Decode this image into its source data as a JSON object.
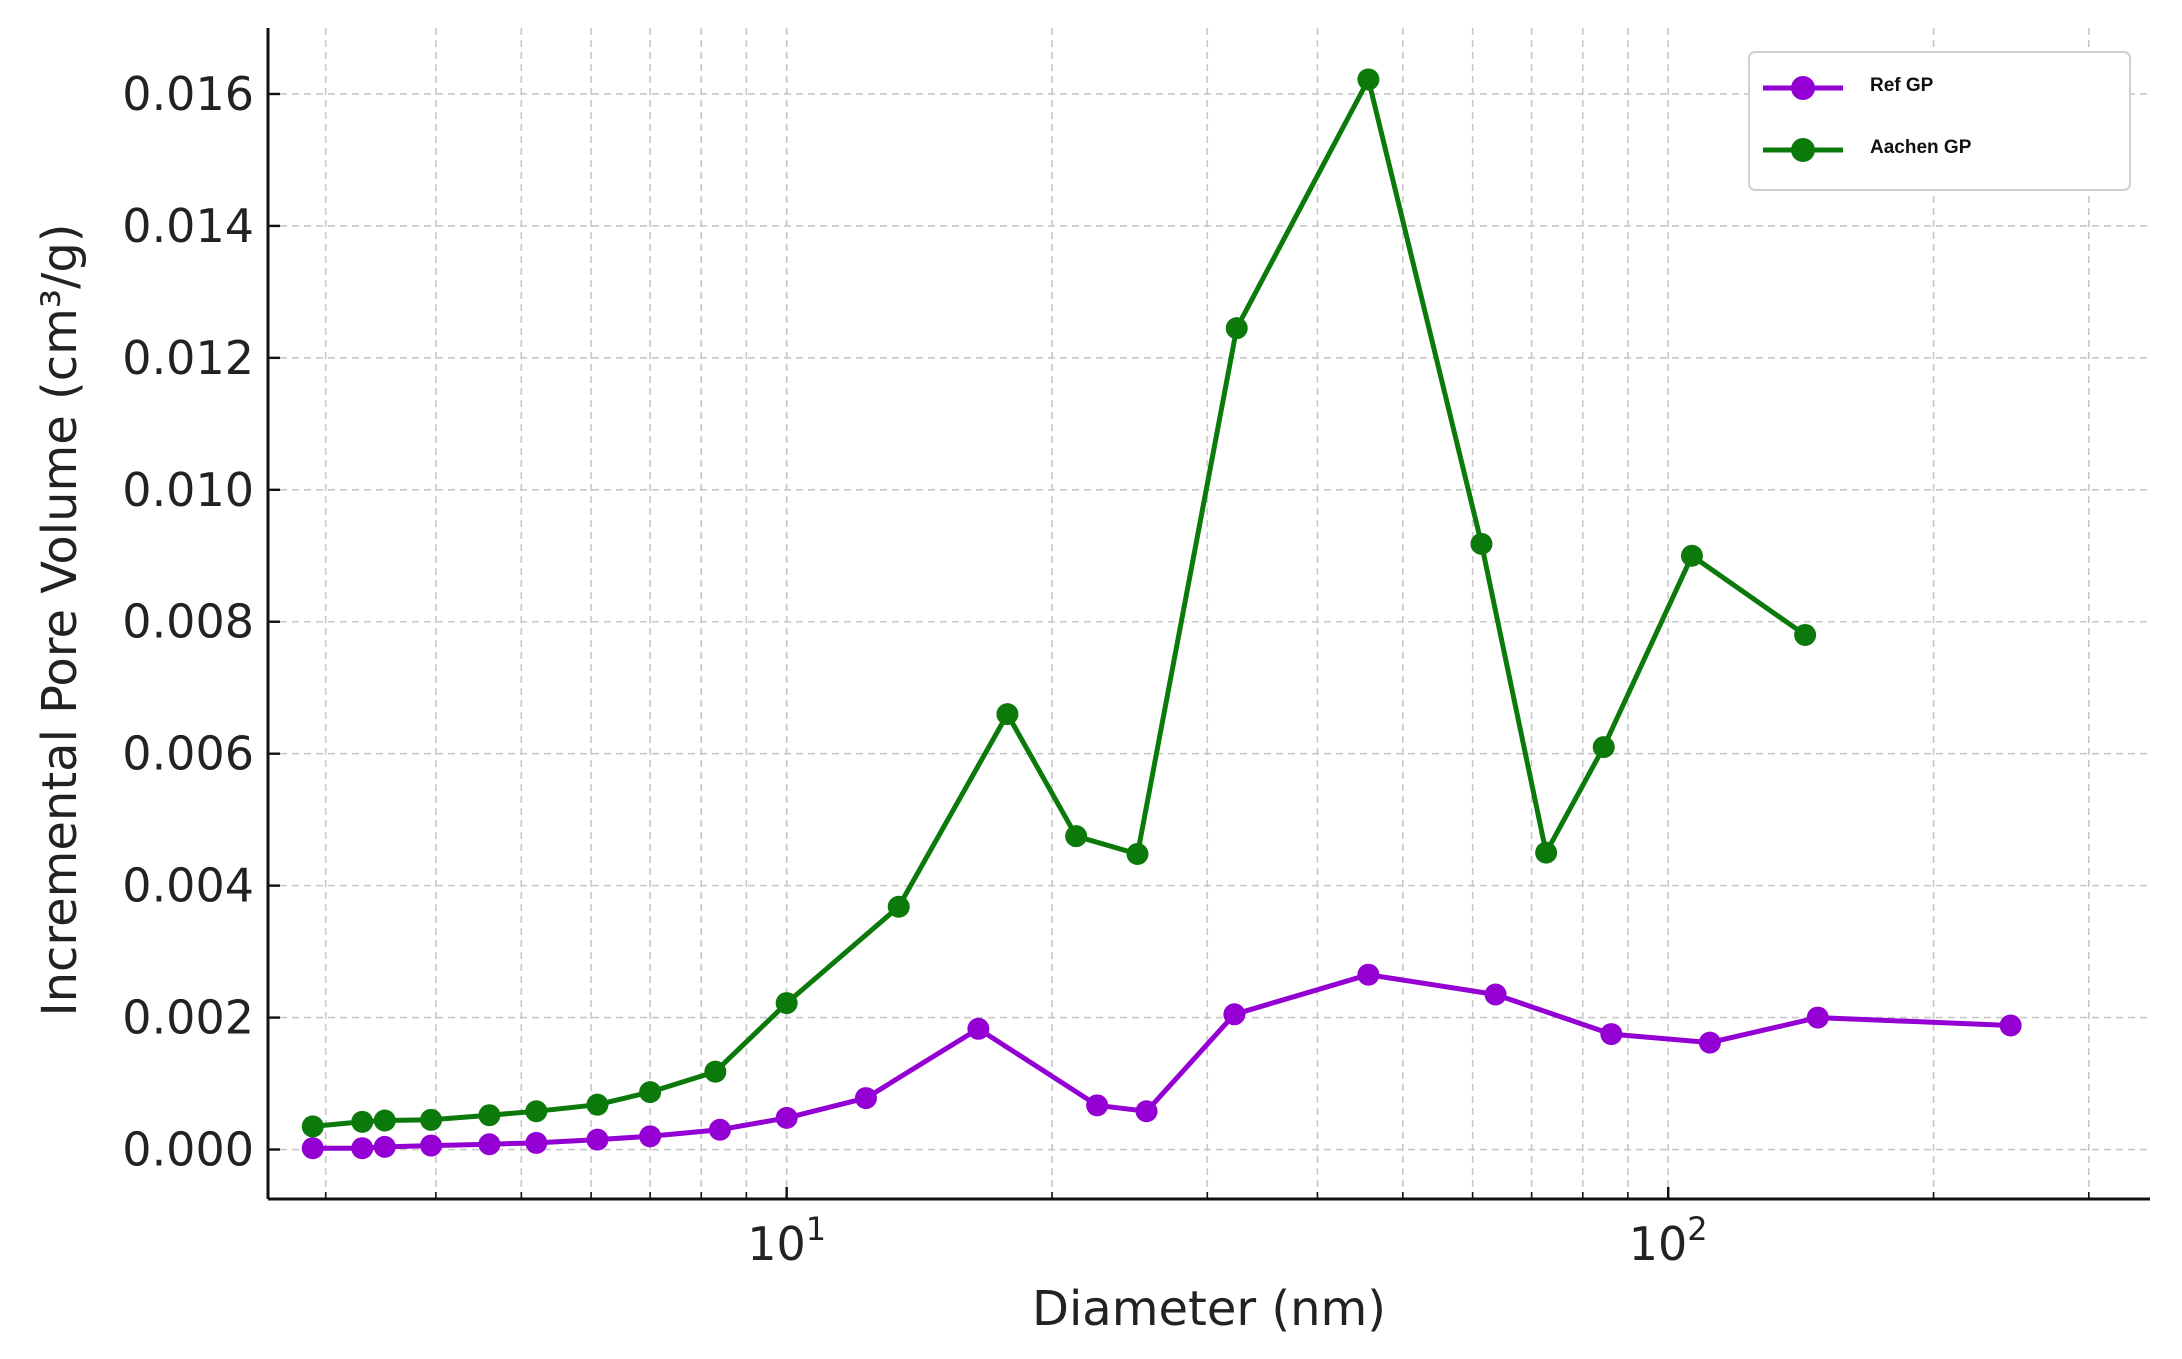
{
  "chart_data": {
    "type": "line",
    "title": "",
    "xlabel": "Diameter (nm)",
    "ylabel": "Incremental Pore Volume (cm³/g)",
    "x_scale": "log",
    "x_ticks": [
      {
        "value": 10,
        "base": "10",
        "exp": "1"
      },
      {
        "value": 100,
        "base": "10",
        "exp": "2"
      }
    ],
    "y_ticks": [
      "0.000",
      "0.002",
      "0.004",
      "0.006",
      "0.008",
      "0.010",
      "0.012",
      "0.014",
      "0.016"
    ],
    "ylim": [
      -0.00075,
      0.017
    ],
    "xlim": [
      2.58,
      352
    ],
    "grid": true,
    "legend_position": "top-right",
    "series": [
      {
        "name": "Ref GP",
        "color": "#9400D3",
        "x": [
          2.9,
          3.3,
          3.5,
          3.95,
          4.6,
          5.2,
          6.1,
          7.0,
          8.4,
          10.0,
          12.3,
          16.5,
          22.5,
          25.6,
          32.2,
          45.7,
          63.7,
          86.2,
          111.5,
          147.8,
          244.6
        ],
        "y": [
          2e-05,
          2e-05,
          4e-05,
          6e-05,
          8e-05,
          0.0001,
          0.00015,
          0.0002,
          0.0003,
          0.00048,
          0.00078,
          0.00183,
          0.00067,
          0.00058,
          0.00205,
          0.00265,
          0.00235,
          0.00175,
          0.00162,
          0.002,
          0.00188
        ]
      },
      {
        "name": "Aachen GP",
        "color": "#0B7A0B",
        "x": [
          2.9,
          3.3,
          3.5,
          3.95,
          4.6,
          5.2,
          6.1,
          7.0,
          8.3,
          10.0,
          13.4,
          17.8,
          21.3,
          25.0,
          32.4,
          45.7,
          61.4,
          72.7,
          84.5,
          106.4,
          143.0
        ],
        "y": [
          0.00035,
          0.00042,
          0.00044,
          0.00045,
          0.00052,
          0.00058,
          0.00068,
          0.00087,
          0.00118,
          0.00222,
          0.00368,
          0.0066,
          0.00475,
          0.00448,
          0.01245,
          0.01622,
          0.00918,
          0.0045,
          0.0061,
          0.009,
          0.0078
        ]
      }
    ]
  }
}
